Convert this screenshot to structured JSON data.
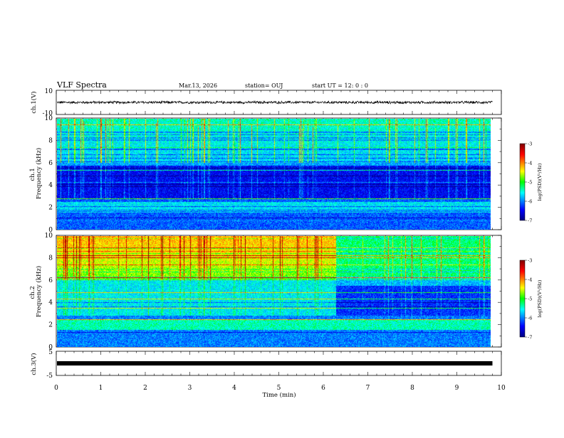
{
  "header": {
    "title": "VLF Spectra",
    "date": "Mar.13, 2026",
    "station": "station= OUJ",
    "start_time": "start  UT =   12: 0  : 0"
  },
  "chart_data": {
    "type": "heatmap",
    "x_axis": {
      "label": "Time  (min)",
      "range": [
        0,
        10
      ],
      "ticks": [
        "0",
        "1",
        "2",
        "3",
        "4",
        "5",
        "6",
        "7",
        "8",
        "9",
        "10"
      ]
    },
    "panels": [
      {
        "id": "ch1-waveform",
        "type": "line",
        "ylabel": "ch.1(V)",
        "ylim": [
          -10,
          10
        ],
        "yticks": [
          "10",
          "0",
          "-10"
        ],
        "mean_value": 0,
        "amplitude": 1.2,
        "data_end_min": 9.8
      },
      {
        "id": "ch1-spectrogram",
        "type": "heatmap",
        "ylabel": "ch.1\nFrequency (kHz)",
        "ylabel_lines": [
          "ch.1",
          "Frequency (kHz)"
        ],
        "ylim": [
          0,
          10
        ],
        "yticks": [
          "0",
          "2",
          "4",
          "6",
          "8",
          "10"
        ],
        "data_end_min": 9.8,
        "features": {
          "quiet_band_khz": [
            2.8,
            5.8
          ],
          "enhanced_band_khz": [
            1.5,
            2.5
          ],
          "active_above_khz": 6.0,
          "impulsive_spikes": true
        },
        "colorbar": {
          "label": "log(PSD)(V²/Hz)",
          "range": [
            -7,
            -3
          ],
          "ticks": [
            "-3",
            "-4",
            "-5",
            "-6",
            "-7"
          ]
        }
      },
      {
        "id": "ch2-spectrogram",
        "type": "heatmap",
        "ylabel": "ch.2\nFrequency (kHz)",
        "ylabel_lines": [
          "ch.2",
          "Frequency (kHz)"
        ],
        "ylim": [
          0,
          10
        ],
        "yticks": [
          "0",
          "2",
          "4",
          "6",
          "8",
          "10"
        ],
        "data_end_min": 9.8,
        "features": {
          "high_activity_band_khz": [
            6.0,
            10.0
          ],
          "mid_band_khz": [
            2.8,
            6.0
          ],
          "transition_time_min": 6.3,
          "post_transition_quiet_band_khz": [
            2.8,
            5.5
          ],
          "impulsive_spikes": true
        },
        "colorbar": {
          "label": "log(PSD)(V²/Hz)",
          "range": [
            -7,
            -3
          ],
          "ticks": [
            "-3",
            "-4",
            "-5",
            "-6",
            "-7"
          ]
        }
      },
      {
        "id": "ch3-waveform",
        "type": "line",
        "ylabel": "ch.3(V)",
        "ylim": [
          -5,
          5
        ],
        "yticks": [
          "5",
          "0",
          "-5"
        ],
        "mean_value": 0,
        "amplitude": 0.3,
        "data_end_min": 9.8
      }
    ],
    "colors": {
      "jet": [
        "#000080",
        "#0000ff",
        "#00ffff",
        "#00ff00",
        "#ffff00",
        "#ff0000",
        "#800000"
      ]
    }
  }
}
